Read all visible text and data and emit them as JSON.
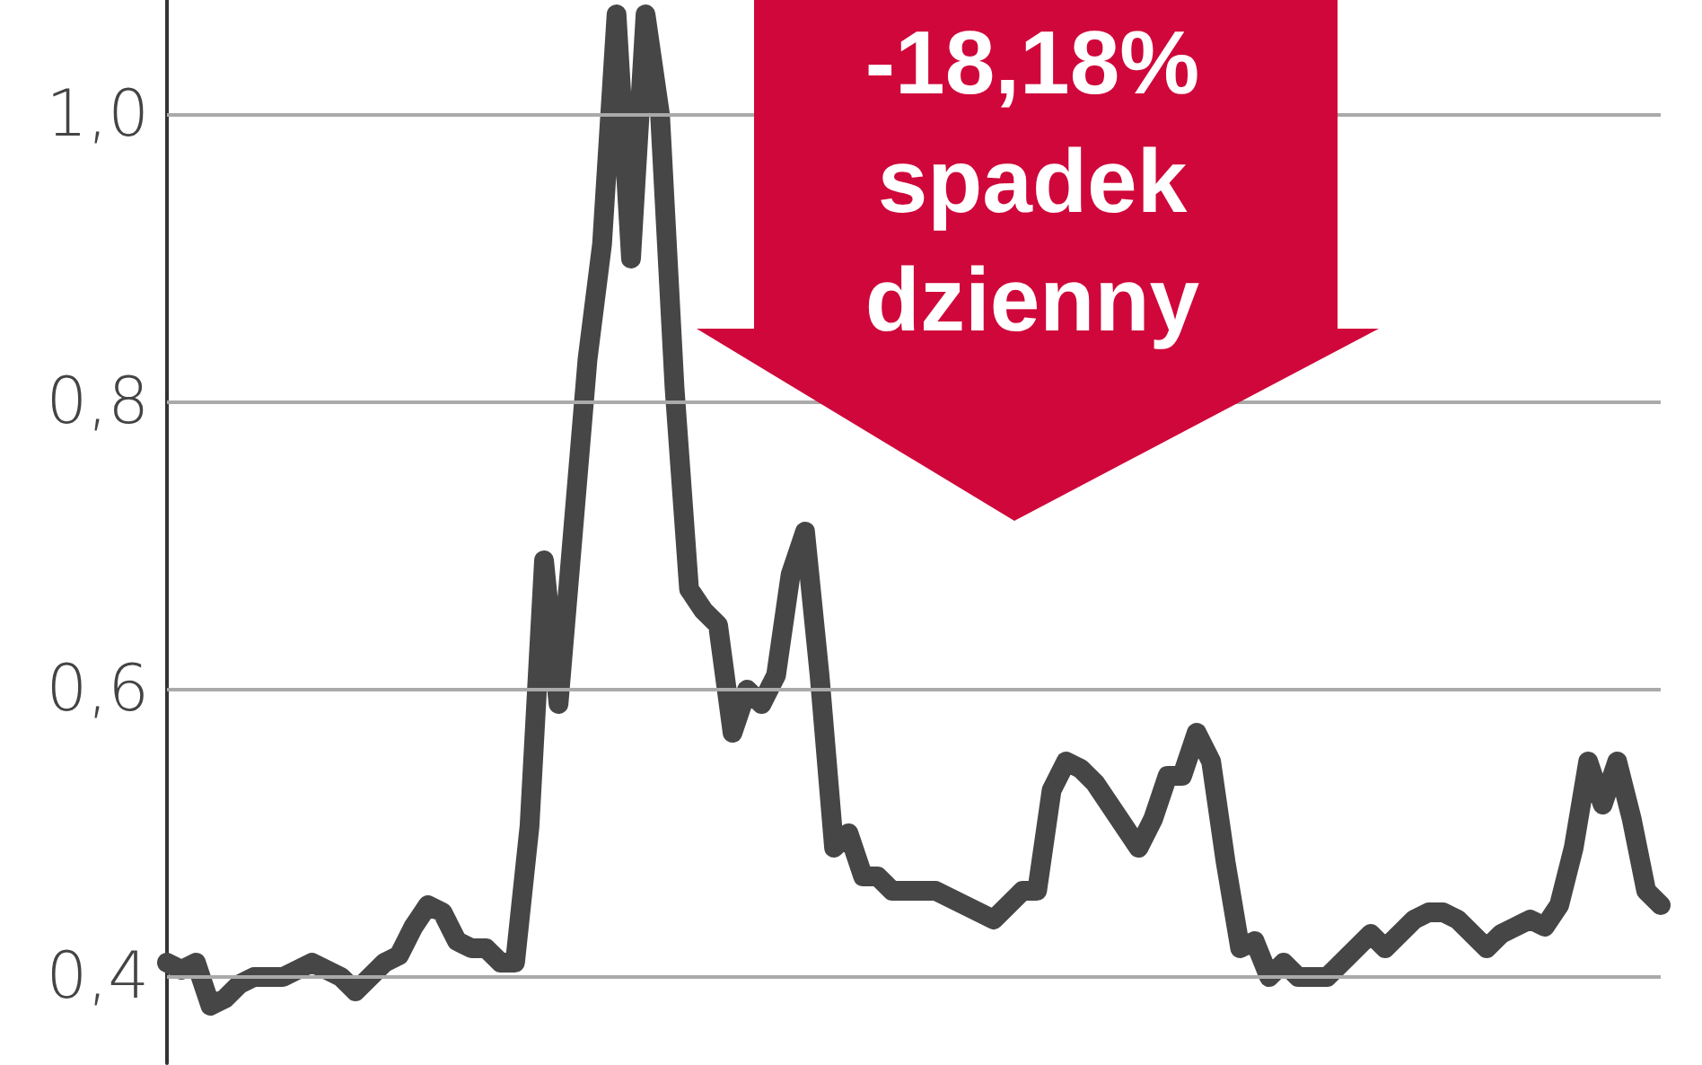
{
  "chart_data": {
    "type": "line",
    "categories": [
      null,
      null,
      null,
      null,
      null,
      null,
      null,
      null,
      null,
      null,
      null,
      null,
      null,
      null,
      null,
      null,
      null,
      null,
      null,
      null,
      null,
      null,
      null,
      null,
      null,
      null,
      null,
      null,
      null,
      null,
      null,
      null,
      null,
      null,
      null,
      null,
      null,
      null,
      null,
      null,
      null,
      null,
      null,
      null,
      null,
      null,
      null,
      null,
      null,
      null,
      null,
      null,
      null,
      null,
      null,
      null,
      null,
      null,
      null,
      null,
      null,
      null,
      null,
      null,
      null,
      null,
      null,
      null,
      null,
      null,
      null,
      null,
      null,
      null,
      null,
      null,
      null,
      null,
      null,
      null,
      null,
      null,
      null,
      null,
      null,
      null,
      null,
      null,
      null,
      null,
      null,
      null,
      null,
      null,
      null,
      null,
      null,
      null,
      null,
      null,
      null,
      null,
      null,
      null
    ],
    "series": [
      {
        "color": "#464646",
        "values": [
          0.41,
          0.405,
          0.41,
          0.38,
          0.385,
          0.395,
          0.4,
          0.4,
          0.4,
          0.405,
          0.41,
          0.405,
          0.4,
          0.39,
          0.4,
          0.41,
          0.415,
          0.435,
          0.45,
          0.445,
          0.425,
          0.42,
          0.42,
          0.41,
          0.41,
          0.505,
          0.69,
          0.59,
          0.71,
          0.83,
          0.91,
          1.07,
          0.9,
          1.07,
          1.0,
          0.81,
          0.67,
          0.655,
          0.645,
          0.57,
          0.6,
          0.59,
          0.61,
          0.68,
          0.71,
          0.61,
          0.49,
          0.5,
          0.47,
          0.47,
          0.46,
          0.46,
          0.46,
          0.46,
          0.455,
          0.45,
          0.445,
          0.44,
          0.45,
          0.46,
          0.46,
          0.53,
          0.55,
          0.545,
          0.535,
          0.52,
          0.505,
          0.49,
          0.51,
          0.54,
          0.54,
          0.57,
          0.55,
          0.48,
          0.42,
          0.425,
          0.4,
          0.41,
          0.4,
          0.4,
          0.4,
          0.41,
          0.42,
          0.43,
          0.42,
          0.43,
          0.44,
          0.445,
          0.445,
          0.44,
          0.43,
          0.42,
          0.43,
          0.435,
          0.44,
          0.435,
          0.45,
          0.49,
          0.55,
          0.52,
          0.55,
          0.51,
          0.46,
          0.45
        ]
      }
    ],
    "ylim": [
      0.34,
      1.08
    ],
    "yticks": [
      {
        "value": 0.4,
        "label": "0,4"
      },
      {
        "value": 0.6,
        "label": "0,6"
      },
      {
        "value": 0.8,
        "label": "0,8"
      },
      {
        "value": 1.0,
        "label": "1,0"
      }
    ],
    "grid": "y",
    "tick_labels": "y",
    "line_style": "solid",
    "annotations": [
      "-18,18% spadek dzienny"
    ]
  }
}
